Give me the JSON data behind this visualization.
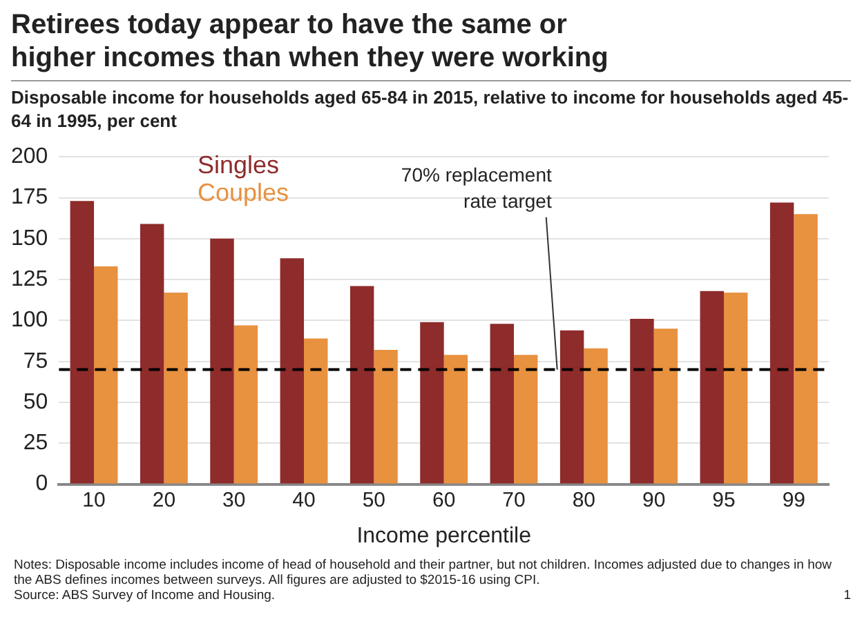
{
  "chart_data": {
    "type": "bar",
    "title": "Retirees today appear to have the same or higher incomes than when they were working",
    "subtitle": "Disposable income for households aged 65-84 in 2015, relative to income for households aged 45-64 in 1995, per cent",
    "xlabel": "Income percentile",
    "categories": [
      "10",
      "20",
      "30",
      "40",
      "50",
      "60",
      "70",
      "80",
      "90",
      "95",
      "99"
    ],
    "series": [
      {
        "name": "Singles",
        "color": "#8e2b2b",
        "values": [
          173,
          159,
          150,
          138,
          121,
          99,
          98,
          94,
          101,
          118,
          172
        ]
      },
      {
        "name": "Couples",
        "color": "#e8913f",
        "values": [
          133,
          117,
          97,
          89,
          82,
          79,
          79,
          83,
          95,
          117,
          165
        ]
      }
    ],
    "ylim": [
      0,
      200
    ],
    "yticks": [
      0,
      25,
      50,
      75,
      100,
      125,
      150,
      175,
      200
    ],
    "grid": "y",
    "legend": "top",
    "ref_lines": [
      {
        "axis": "y",
        "value": 70,
        "label": "70% replacement rate target",
        "color": "#000000",
        "line_style": "dashed"
      }
    ],
    "annotations": [
      "Notes: Disposable income includes income of head of household and their partner, but not children. Incomes adjusted due to changes in how the ABS defines incomes between surveys. All figures are adjusted to $2015-16 using CPI.",
      "Source: ABS Survey of Income and Housing.",
      "1"
    ]
  }
}
